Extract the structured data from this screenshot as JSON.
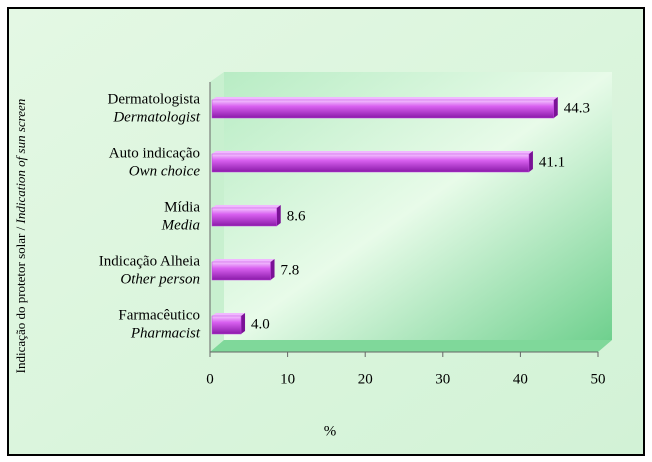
{
  "chart_data": {
    "type": "bar",
    "orientation": "horizontal",
    "categories": [
      [
        "Dermatologista",
        "Dermatologist"
      ],
      [
        "Auto indicação",
        "Own choice"
      ],
      [
        "Mídia",
        "Media"
      ],
      [
        "Indicação Alheia",
        "Other person"
      ],
      [
        "Farmacêutico",
        "Pharmacist"
      ]
    ],
    "values": [
      44.3,
      41.1,
      8.6,
      7.8,
      4.0
    ],
    "value_labels": [
      "44.3",
      "41.1",
      "8.6",
      "7.8",
      "4.0"
    ],
    "color": "#c040e0",
    "xlim": [
      0,
      50
    ],
    "xticks": [
      0,
      10,
      20,
      30,
      40,
      50
    ],
    "xlabel": "%",
    "ylabel": [
      "Indicação do protetor solar /",
      "Indication of sun screen"
    ]
  }
}
